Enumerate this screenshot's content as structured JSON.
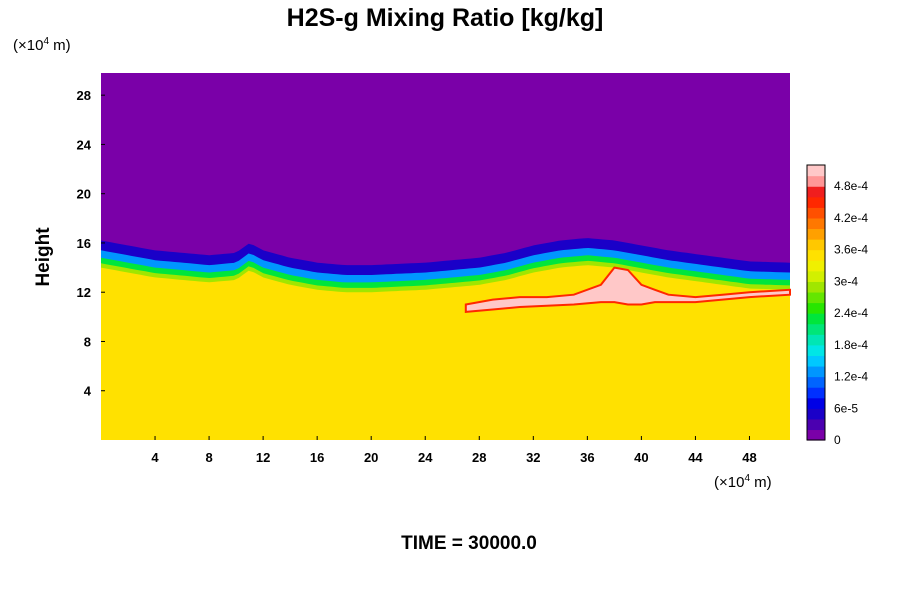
{
  "chart_data": {
    "type": "heatmap",
    "title": "H2S-g Mixing Ratio [kg/kg]",
    "ylabel": "Height",
    "xunit_base": "(×10",
    "xunit_exp": "4",
    "xunit_tail": " m)",
    "yunit_base": "(×10",
    "yunit_exp": "4",
    "yunit_tail": " m)",
    "xlim": [
      0,
      51
    ],
    "ylim": [
      0,
      29.8
    ],
    "x_ticks": [
      4,
      8,
      12,
      16,
      20,
      24,
      28,
      32,
      36,
      40,
      44,
      48
    ],
    "x_tick_labels": [
      "4",
      "8",
      "12",
      "16",
      "20",
      "24",
      "28",
      "32",
      "36",
      "40",
      "44",
      "48"
    ],
    "y_ticks": [
      4,
      8,
      12,
      16,
      20,
      24,
      28
    ],
    "y_tick_labels": [
      "4",
      "8",
      "12",
      "16",
      "20",
      "24",
      "28"
    ],
    "colorbar": {
      "range": [
        0,
        0.00052
      ],
      "ticks": [
        0,
        6e-05,
        0.00012,
        0.00018,
        0.00024,
        0.0003,
        0.00036,
        0.00042,
        0.00048
      ],
      "tick_labels": [
        "0",
        "6e-5",
        "1.2e-4",
        "1.8e-4",
        "2.4e-4",
        "3e-4",
        "3.6e-4",
        "4.2e-4",
        "4.8e-4"
      ],
      "colors": [
        "#7a00a8",
        "#4b00b0",
        "#1a00c8",
        "#0000e6",
        "#0030ff",
        "#0064ff",
        "#0096ff",
        "#00c8ff",
        "#00e6e6",
        "#00e6b4",
        "#00e678",
        "#00e63c",
        "#28e600",
        "#64e600",
        "#a0e600",
        "#d2f000",
        "#f0f000",
        "#ffe100",
        "#ffc800",
        "#ffa000",
        "#ff7800",
        "#ff5000",
        "#ff2800",
        "#f01e1e",
        "#ff9696",
        "#ffc8c8"
      ]
    },
    "field": {
      "background_value": 0.0,
      "lower_layer_value": 0.000355,
      "interface_height_profile": {
        "x": [
          0,
          2,
          4,
          6,
          8,
          10,
          11,
          12,
          14,
          16,
          18,
          20,
          22,
          24,
          26,
          28,
          30,
          32,
          34,
          36,
          38,
          40,
          42,
          44,
          46,
          48,
          51
        ],
        "y": [
          14.0,
          13.6,
          13.2,
          13.0,
          12.8,
          13.0,
          13.8,
          13.2,
          12.6,
          12.2,
          12.0,
          12.0,
          12.1,
          12.2,
          12.4,
          12.6,
          13.0,
          13.6,
          14.0,
          14.2,
          14.0,
          13.6,
          13.2,
          12.9,
          12.6,
          12.3,
          12.2
        ]
      },
      "gradient_band": [
        {
          "offset_above": 2.2,
          "value": 5e-05
        },
        {
          "offset_above": 1.4,
          "value": 0.00013
        },
        {
          "offset_above": 0.8,
          "value": 0.00022
        },
        {
          "offset_above": 0.35,
          "value": 0.0003
        }
      ],
      "high_concentration_layer": {
        "x": [
          27,
          29,
          31,
          33,
          35,
          37,
          38,
          39,
          40,
          41,
          42,
          44,
          46,
          48,
          51
        ],
        "y_top": [
          11.0,
          11.4,
          11.6,
          11.6,
          11.8,
          12.6,
          14.0,
          13.8,
          12.6,
          12.2,
          11.8,
          11.6,
          11.8,
          12.0,
          12.2
        ],
        "y_bottom": [
          10.4,
          10.6,
          10.8,
          10.9,
          11.0,
          11.2,
          11.2,
          11.0,
          11.0,
          11.2,
          11.2,
          11.2,
          11.4,
          11.6,
          11.8
        ],
        "value": 0.0005
      }
    }
  },
  "time_label": "TIME = 30000.0"
}
